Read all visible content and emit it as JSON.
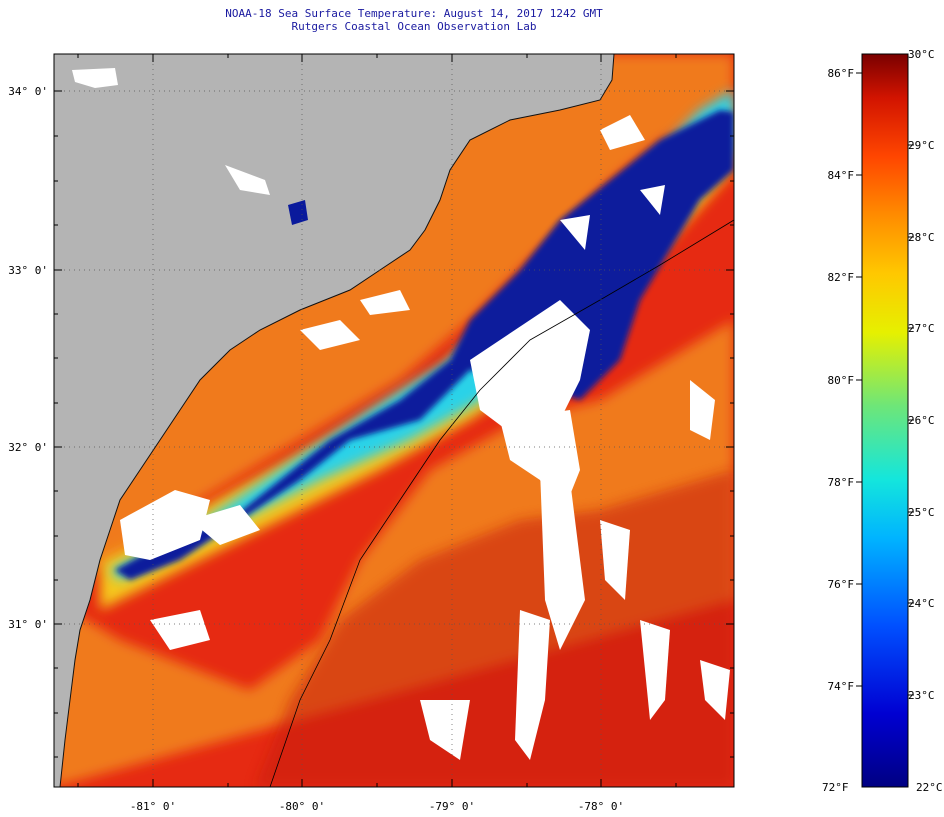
{
  "title": {
    "line1": "NOAA-18 Sea Surface Temperature:  August 14, 2017 1242 GMT",
    "line2": "Rutgers Coastal Ocean Observation Lab"
  },
  "map": {
    "lat_labels": [
      "34° 0'",
      "33° 0'",
      "32° 0'",
      "31° 0'"
    ],
    "lon_labels": [
      "-81° 0'",
      "-80° 0'",
      "-79° 0'",
      "-78° 0'"
    ],
    "colors": {
      "land": "#b4b4b4",
      "cloud": "#ffffff",
      "warm_core": "#e62a12",
      "shelf": "#f07a1e",
      "cold_band": "#0a1a9c",
      "front": "#2ad2e8"
    }
  },
  "colorbar": {
    "fahrenheit_labels": [
      "86°F",
      "84°F",
      "82°F",
      "80°F",
      "78°F",
      "76°F",
      "74°F",
      "72°F"
    ],
    "celsius_labels": [
      "30°C",
      "29°C",
      "28°C",
      "27°C",
      "26°C",
      "25°C",
      "24°C",
      "23°C",
      "22°C"
    ],
    "celsius_range": [
      22,
      30
    ],
    "fahrenheit_range": [
      72,
      86
    ]
  }
}
